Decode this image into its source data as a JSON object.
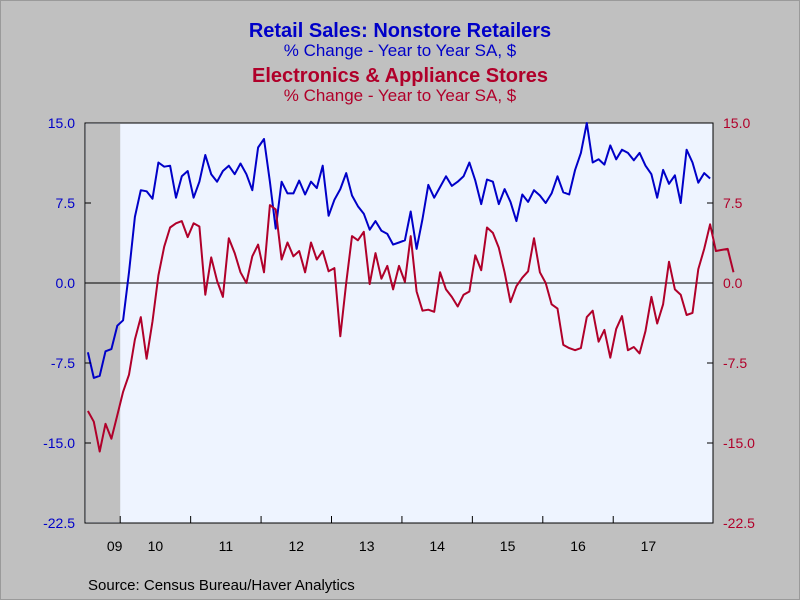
{
  "titles": {
    "series1_title": "Retail Sales: Nonstore Retailers",
    "series1_subtitle": "% Change - Year to Year    SA, $",
    "series2_title": "Electronics & Appliance Stores",
    "series2_subtitle": "% Change - Year to Year    SA, $"
  },
  "source": "Source:  Census Bureau/Haver Analytics",
  "colors": {
    "series1": "#0000c8",
    "series2": "#b0002a",
    "plot_bg": "#eef4ff",
    "outer_bg": "#c0c0c0",
    "recession_shade": "#c0c0c0",
    "left_axis_labels": "#0000c8",
    "right_axis_labels": "#b0002a"
  },
  "chart_data": {
    "type": "line",
    "title": "Retail Sales: Nonstore Retailers / Electronics & Appliance Stores",
    "x_axis": {
      "start": "2009-01",
      "frequency": "monthly",
      "tick_labels": [
        "09",
        "10",
        "11",
        "12",
        "13",
        "14",
        "15",
        "16",
        "17"
      ]
    },
    "y_left": {
      "ylim": [
        -22.5,
        15.0
      ],
      "ticks": [
        "15.0",
        "7.5",
        "0.0",
        "-7.5",
        "-15.0",
        "-22.5"
      ]
    },
    "y_right": {
      "ylim": [
        -22.5,
        15.0
      ],
      "ticks": [
        "15.0",
        "7.5",
        "0.0",
        "-7.5",
        "-15.0",
        "-22.5"
      ]
    },
    "zero_line": true,
    "recession_shading": {
      "from": "2009-01",
      "to": "2009-06"
    },
    "series": [
      {
        "name": "Retail Sales: Nonstore Retailers",
        "color": "#0000c8",
        "values": [
          -6.5,
          -8.9,
          -8.7,
          -6.4,
          -6.2,
          -4.0,
          -3.5,
          1.0,
          6.2,
          8.7,
          8.6,
          7.9,
          11.3,
          10.9,
          11.0,
          8.0,
          10.0,
          10.5,
          8.0,
          9.5,
          12.0,
          10.2,
          9.5,
          10.5,
          11.0,
          10.2,
          11.2,
          10.2,
          8.7,
          12.7,
          13.5,
          9.5,
          5.1,
          9.5,
          8.4,
          8.4,
          9.6,
          8.3,
          9.5,
          8.9,
          11.0,
          6.3,
          7.8,
          8.8,
          10.3,
          8.2,
          7.2,
          6.5,
          5.0,
          5.8,
          4.9,
          4.6,
          3.6,
          3.8,
          4.0,
          6.7,
          3.2,
          6.0,
          9.2,
          8.0,
          9.0,
          10.0,
          9.1,
          9.5,
          10.0,
          11.3,
          9.6,
          7.4,
          9.7,
          9.5,
          7.4,
          8.8,
          7.6,
          5.8,
          8.3,
          7.6,
          8.7,
          8.2,
          7.5,
          8.4,
          10.0,
          8.5,
          8.3,
          10.6,
          12.2,
          15.0,
          11.3,
          11.6,
          11.1,
          12.9,
          11.6,
          12.5,
          12.2,
          11.5,
          12.2,
          11.0,
          10.2,
          8.0,
          10.6,
          9.3,
          10.1,
          7.5,
          12.5,
          11.3,
          9.4,
          10.3,
          9.8
        ]
      },
      {
        "name": "Electronics & Appliance Stores",
        "color": "#b0002a",
        "values": [
          -12.0,
          -13.0,
          -15.8,
          -13.2,
          -14.6,
          -12.4,
          -10.2,
          -8.6,
          -5.3,
          -3.2,
          -7.1,
          -3.6,
          0.7,
          3.4,
          5.2,
          5.6,
          5.8,
          4.3,
          5.6,
          5.3,
          -1.1,
          2.4,
          0.2,
          -1.3,
          4.2,
          2.8,
          1.0,
          0.0,
          2.5,
          3.6,
          1.0,
          7.3,
          6.9,
          2.2,
          3.8,
          2.5,
          3.0,
          1.0,
          3.8,
          2.2,
          3.0,
          1.1,
          1.4,
          -5.0,
          0.0,
          4.4,
          4.0,
          4.8,
          -0.1,
          2.8,
          0.4,
          1.6,
          -0.6,
          1.6,
          0.1,
          4.4,
          -0.8,
          -2.6,
          -2.5,
          -2.7,
          1.0,
          -0.6,
          -1.3,
          -2.2,
          -1.1,
          -0.8,
          2.6,
          1.2,
          5.2,
          4.7,
          3.3,
          1.0,
          -1.8,
          -0.3,
          0.5,
          1.1,
          4.2,
          1.0,
          0.0,
          -2.0,
          -2.4,
          -5.8,
          -6.1,
          -6.3,
          -6.1,
          -3.2,
          -2.6,
          -5.5,
          -4.4,
          -7.0,
          -4.3,
          -3.1,
          -6.3,
          -6.0,
          -6.6,
          -4.5,
          -1.3,
          -3.8,
          -2.0,
          2.0,
          -0.6,
          -1.1,
          -3.0,
          -2.8,
          1.3,
          3.2,
          5.5,
          3.0,
          3.1,
          3.2,
          1.0
        ]
      }
    ]
  }
}
